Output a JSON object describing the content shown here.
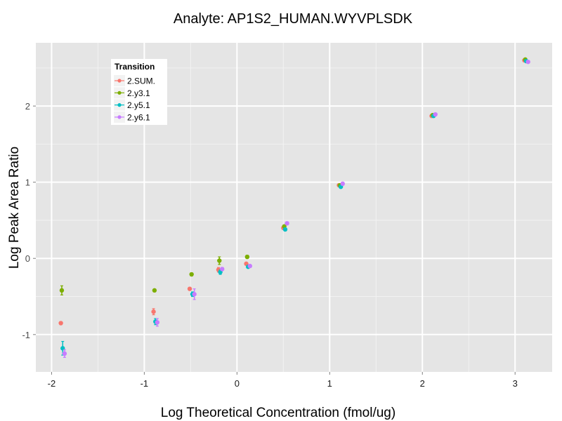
{
  "chart_data": {
    "type": "scatter",
    "title": "Analyte: AP1S2_HUMAN.WYVPLSDK",
    "xlabel": "Log Theoretical Concentration (fmol/ug)",
    "ylabel": "Log Peak Area Ratio",
    "xlim": [
      -2.17,
      3.4
    ],
    "ylim": [
      -1.49,
      2.83
    ],
    "x_ticks": [
      -2,
      -1,
      0,
      1,
      2,
      3
    ],
    "x_tick_labels": [
      "-2",
      "-1",
      "0",
      "1",
      "2",
      "3"
    ],
    "y_ticks": [
      -1,
      0,
      1,
      2
    ],
    "y_tick_labels": [
      "-1",
      "0",
      "1",
      "2"
    ],
    "grid": true,
    "legend": {
      "title": "Transition",
      "position": "top-left"
    },
    "series": [
      {
        "name": "2.SUM.",
        "color": "#F8766D",
        "points": [
          {
            "x": -1.9,
            "y": -0.85,
            "err": 0.02
          },
          {
            "x": -0.9,
            "y": -0.7,
            "err": 0.04
          },
          {
            "x": -0.51,
            "y": -0.4,
            "err": 0.02
          },
          {
            "x": -0.2,
            "y": -0.15,
            "err": 0.03
          },
          {
            "x": 0.1,
            "y": -0.07,
            "err": 0.01
          },
          {
            "x": 0.5,
            "y": 0.4,
            "err": 0.01
          },
          {
            "x": 1.1,
            "y": 0.96,
            "err": 0.01
          },
          {
            "x": 2.1,
            "y": 1.87,
            "err": 0.01
          },
          {
            "x": 3.1,
            "y": 2.6,
            "err": 0.01
          }
        ]
      },
      {
        "name": "2.y3.1",
        "color": "#7CAE00",
        "points": [
          {
            "x": -1.89,
            "y": -0.42,
            "err": 0.06
          },
          {
            "x": -0.89,
            "y": -0.42,
            "err": 0.01
          },
          {
            "x": -0.49,
            "y": -0.21,
            "err": 0.02
          },
          {
            "x": -0.19,
            "y": -0.03,
            "err": 0.05
          },
          {
            "x": 0.11,
            "y": 0.02,
            "err": 0.02
          },
          {
            "x": 0.51,
            "y": 0.42,
            "err": 0.01
          },
          {
            "x": 1.11,
            "y": 0.96,
            "err": 0.01
          },
          {
            "x": 2.11,
            "y": 1.88,
            "err": 0.01
          },
          {
            "x": 3.11,
            "y": 2.61,
            "err": 0.01
          }
        ]
      },
      {
        "name": "2.y5.1",
        "color": "#00BFC4",
        "points": [
          {
            "x": -1.88,
            "y": -1.18,
            "err": 0.09
          },
          {
            "x": -0.88,
            "y": -0.83,
            "err": 0.04
          },
          {
            "x": -0.48,
            "y": -0.47,
            "err": 0.03
          },
          {
            "x": -0.18,
            "y": -0.18,
            "err": 0.03
          },
          {
            "x": 0.12,
            "y": -0.11,
            "err": 0.01
          },
          {
            "x": 0.52,
            "y": 0.38,
            "err": 0.01
          },
          {
            "x": 1.12,
            "y": 0.94,
            "err": 0.01
          },
          {
            "x": 2.12,
            "y": 1.87,
            "err": 0.01
          },
          {
            "x": 3.12,
            "y": 2.59,
            "err": 0.01
          }
        ]
      },
      {
        "name": "2.y6.1",
        "color": "#C77CFF",
        "points": [
          {
            "x": -1.86,
            "y": -1.25,
            "err": 0.05
          },
          {
            "x": -0.86,
            "y": -0.84,
            "err": 0.05
          },
          {
            "x": -0.46,
            "y": -0.47,
            "err": 0.07
          },
          {
            "x": -0.16,
            "y": -0.14,
            "err": 0.02
          },
          {
            "x": 0.14,
            "y": -0.1,
            "err": 0.01
          },
          {
            "x": 0.54,
            "y": 0.46,
            "err": 0.02
          },
          {
            "x": 1.14,
            "y": 0.98,
            "err": 0.02
          },
          {
            "x": 2.14,
            "y": 1.89,
            "err": 0.01
          },
          {
            "x": 3.14,
            "y": 2.58,
            "err": 0.01
          }
        ]
      }
    ]
  }
}
